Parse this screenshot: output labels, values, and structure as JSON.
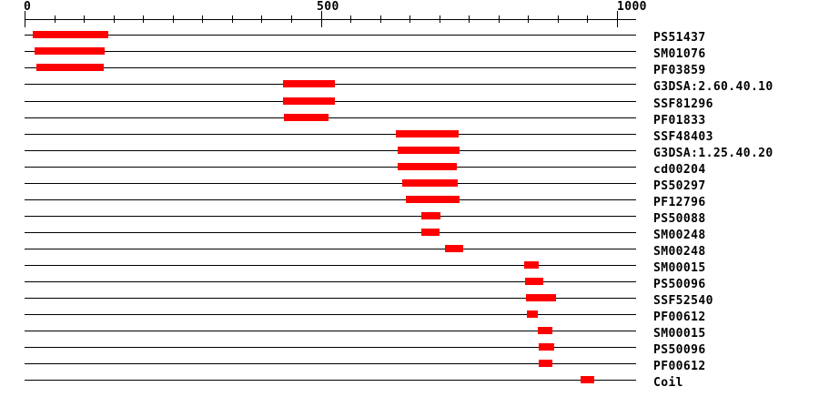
{
  "colors": {
    "bar": "#ff0000",
    "line": "#000000",
    "text": "#000000",
    "background": "#ffffff"
  },
  "chart_data": {
    "type": "bar",
    "subtype": "horizontal-domain-architecture",
    "title": "",
    "xlabel": "",
    "legend": null,
    "grid": false,
    "axis": {
      "min": 0,
      "max": 1000,
      "minor_tick_step": 50,
      "major_ticks": [
        0,
        500,
        1000
      ],
      "tick_labels": [
        "0",
        "500",
        "1000"
      ],
      "position": "top"
    },
    "sequence_length": 1032,
    "rows": [
      {
        "label": "PS51437",
        "start": 14,
        "end": 142
      },
      {
        "label": "SM01076",
        "start": 17,
        "end": 136
      },
      {
        "label": "PF03859",
        "start": 20,
        "end": 134
      },
      {
        "label": "G3DSA:2.60.40.10",
        "start": 436,
        "end": 523
      },
      {
        "label": "SSF81296",
        "start": 436,
        "end": 524
      },
      {
        "label": "PF01833",
        "start": 438,
        "end": 514
      },
      {
        "label": "SSF48403",
        "start": 626,
        "end": 732
      },
      {
        "label": "G3DSA:1.25.40.20",
        "start": 630,
        "end": 734
      },
      {
        "label": "cd00204",
        "start": 630,
        "end": 730
      },
      {
        "label": "PS50297",
        "start": 637,
        "end": 731
      },
      {
        "label": "PF12796",
        "start": 644,
        "end": 734
      },
      {
        "label": "PS50088",
        "start": 670,
        "end": 703
      },
      {
        "label": "SM00248",
        "start": 670,
        "end": 700
      },
      {
        "label": "SM00248",
        "start": 710,
        "end": 740
      },
      {
        "label": "SM00015",
        "start": 843,
        "end": 868
      },
      {
        "label": "PS50096",
        "start": 845,
        "end": 876
      },
      {
        "label": "SSF52540",
        "start": 846,
        "end": 897
      },
      {
        "label": "PF00612",
        "start": 848,
        "end": 866
      },
      {
        "label": "SM00015",
        "start": 866,
        "end": 891
      },
      {
        "label": "PS50096",
        "start": 868,
        "end": 894
      },
      {
        "label": "PF00612",
        "start": 868,
        "end": 891
      },
      {
        "label": "Coil",
        "start": 939,
        "end": 962
      }
    ]
  }
}
